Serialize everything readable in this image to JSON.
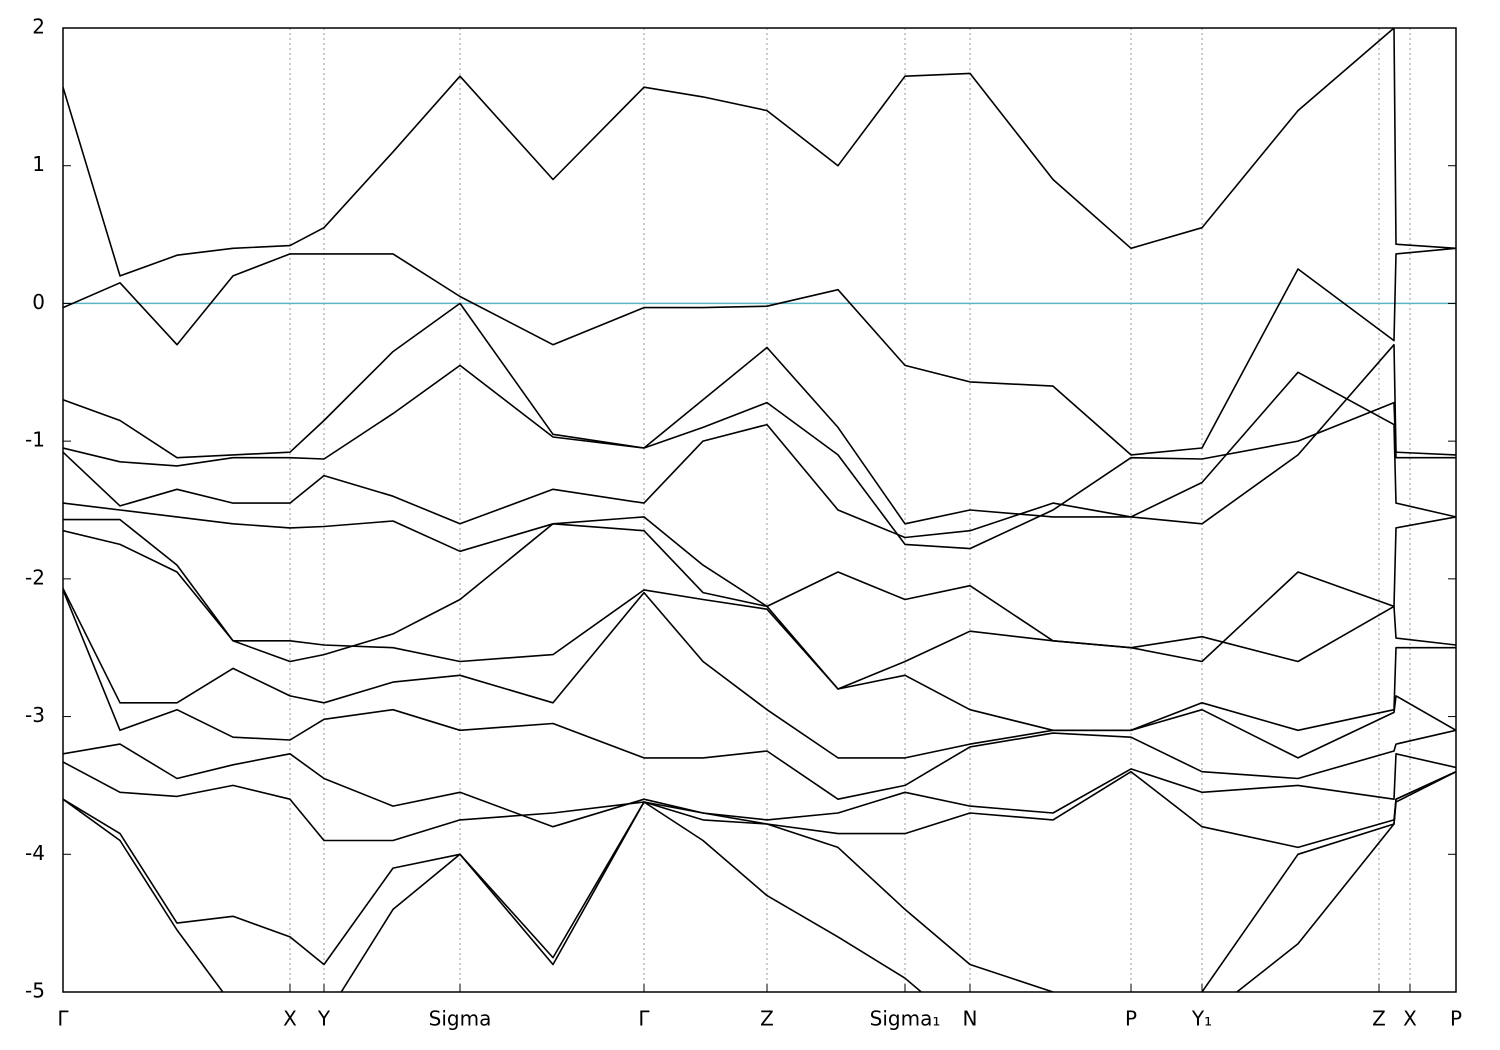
{
  "chart_data": {
    "type": "line",
    "x": [
      0,
      57,
      114,
      170,
      227,
      261,
      330,
      397,
      490,
      581,
      640,
      704,
      775,
      842,
      907,
      990,
      1068,
      1139,
      1235,
      1331,
      1333,
      1393
    ],
    "xlim": [
      0,
      1393
    ],
    "xticks": [
      {
        "value": 0,
        "label": "Γ"
      },
      {
        "value": 227,
        "label": "X"
      },
      {
        "value": 261,
        "label": "Y"
      },
      {
        "value": 397,
        "label": "Sigma"
      },
      {
        "value": 581,
        "label": "Γ"
      },
      {
        "value": 704,
        "label": "Z"
      },
      {
        "value": 842,
        "label": "Sigma₁"
      },
      {
        "value": 907,
        "label": "N"
      },
      {
        "value": 1068,
        "label": "P"
      },
      {
        "value": 1139,
        "label": "Y₁"
      },
      {
        "value": 1316,
        "label": "Z"
      },
      {
        "value": 1347,
        "label": "X"
      },
      {
        "value": 1393,
        "label": "P"
      }
    ],
    "ylim": [
      -5,
      2
    ],
    "yticks": [
      -5,
      -4,
      -3,
      -2,
      -1,
      0,
      1,
      2
    ],
    "grid": true,
    "fermi_level": 0,
    "fermi_color": "#5fb4c8",
    "series": [
      {
        "color": "#000000",
        "values": [
          1.57,
          0.2,
          0.35,
          0.4,
          0.42,
          0.55,
          1.1,
          1.65,
          0.9,
          1.57,
          1.5,
          1.4,
          1.0,
          1.65,
          1.67,
          0.9,
          0.4,
          0.55,
          1.4,
          2.0,
          0.43,
          0.4
        ]
      },
      {
        "color": "#000000",
        "values": [
          -0.03,
          0.15,
          -0.3,
          0.2,
          0.36,
          0.36,
          0.36,
          0.05,
          -0.3,
          -0.03,
          -0.03,
          -0.02,
          0.1,
          -0.45,
          -0.57,
          -0.6,
          -1.1,
          -1.05,
          0.25,
          -0.27,
          0.36,
          0.4
        ]
      },
      {
        "color": "#000000",
        "values": [
          -0.7,
          -0.85,
          -1.12,
          -1.1,
          -1.08,
          -0.85,
          -0.35,
          0.0,
          -0.95,
          -1.05,
          -0.7,
          -0.32,
          -0.9,
          -1.6,
          -1.5,
          -1.55,
          -1.55,
          -1.6,
          -1.1,
          -0.3,
          -1.08,
          -1.1
        ]
      },
      {
        "color": "#000000",
        "values": [
          -1.05,
          -1.15,
          -1.18,
          -1.12,
          -1.12,
          -1.13,
          -0.8,
          -0.45,
          -0.97,
          -1.05,
          -0.9,
          -0.72,
          -1.1,
          -1.75,
          -1.78,
          -1.5,
          -1.12,
          -1.13,
          -1.0,
          -0.72,
          -1.12,
          -1.12
        ]
      },
      {
        "color": "#000000",
        "values": [
          -1.08,
          -1.47,
          -1.35,
          -1.45,
          -1.45,
          -1.25,
          -1.4,
          -1.6,
          -1.35,
          -1.45,
          -1.0,
          -0.88,
          -1.5,
          -1.7,
          -1.65,
          -1.45,
          -1.55,
          -1.3,
          -0.5,
          -0.88,
          -1.45,
          -1.55
        ]
      },
      {
        "color": "#000000",
        "values": [
          -1.45,
          -1.5,
          -1.55,
          -1.6,
          -1.63,
          -1.62,
          -1.58,
          -1.8,
          -1.6,
          -1.55,
          -1.9,
          -2.2,
          -1.95,
          -2.15,
          -2.05,
          -2.45,
          -2.5,
          -2.6,
          -1.95,
          -2.2,
          -1.63,
          -1.55
        ]
      },
      {
        "color": "#000000",
        "values": [
          -1.57,
          -1.57,
          -1.9,
          -2.45,
          -2.6,
          -2.55,
          -2.4,
          -2.15,
          -1.6,
          -1.65,
          -2.1,
          -2.2,
          -2.8,
          -2.6,
          -2.38,
          -2.45,
          -2.5,
          -2.42,
          -2.6,
          -2.2,
          -2.43,
          -2.48
        ]
      },
      {
        "color": "#000000",
        "values": [
          -1.65,
          -1.75,
          -1.95,
          -2.45,
          -2.45,
          -2.48,
          -2.5,
          -2.6,
          -2.55,
          -2.08,
          -2.15,
          -2.22,
          -2.8,
          -2.7,
          -2.95,
          -3.1,
          -3.1,
          -2.9,
          -3.1,
          -2.95,
          -2.5,
          -2.5
        ]
      },
      {
        "color": "#000000",
        "values": [
          -2.07,
          -2.9,
          -2.9,
          -2.65,
          -2.85,
          -2.9,
          -2.75,
          -2.7,
          -2.9,
          -2.1,
          -2.6,
          -2.95,
          -3.3,
          -3.3,
          -3.2,
          -3.1,
          -3.1,
          -2.95,
          -3.3,
          -2.97,
          -2.85,
          -3.1
        ]
      },
      {
        "color": "#000000",
        "values": [
          -2.08,
          -3.1,
          -2.95,
          -3.15,
          -3.17,
          -3.02,
          -2.95,
          -3.1,
          -3.05,
          -3.3,
          -3.3,
          -3.25,
          -3.6,
          -3.5,
          -3.22,
          -3.12,
          -3.15,
          -3.4,
          -3.45,
          -3.25,
          -3.2,
          -3.1
        ]
      },
      {
        "color": "#000000",
        "values": [
          -3.27,
          -3.2,
          -3.45,
          -3.35,
          -3.27,
          -3.45,
          -3.65,
          -3.55,
          -3.8,
          -3.6,
          -3.7,
          -3.75,
          -3.7,
          -3.55,
          -3.65,
          -3.7,
          -3.38,
          -3.55,
          -3.5,
          -3.6,
          -3.27,
          -3.37
        ]
      },
      {
        "color": "#000000",
        "values": [
          -3.33,
          -3.55,
          -3.58,
          -3.5,
          -3.6,
          -3.9,
          -3.9,
          -3.75,
          -3.7,
          -3.62,
          -3.7,
          -3.78,
          -3.85,
          -3.85,
          -3.7,
          -3.75,
          -3.4,
          -3.8,
          -3.95,
          -3.75,
          -3.6,
          -3.4
        ]
      },
      {
        "color": "#000000",
        "values": [
          -3.6,
          -3.85,
          -4.5,
          -4.45,
          -4.6,
          -4.8,
          -4.1,
          -4.0,
          -4.75,
          -3.62,
          -3.75,
          -3.78,
          -3.95,
          -4.4,
          -4.8,
          -5.0,
          -5.6,
          -5.2,
          -4.65,
          -3.78,
          -3.6,
          -3.4
        ]
      },
      {
        "color": "#000000",
        "values": [
          -3.6,
          -3.9,
          -4.55,
          -5.1,
          -5.7,
          -5.2,
          -4.4,
          -4.0,
          -4.8,
          -3.62,
          -3.9,
          -4.3,
          -4.6,
          -4.9,
          -5.3,
          -5.6,
          -5.8,
          -5.0,
          -4.0,
          -3.78,
          -3.62,
          -3.4
        ]
      }
    ]
  }
}
